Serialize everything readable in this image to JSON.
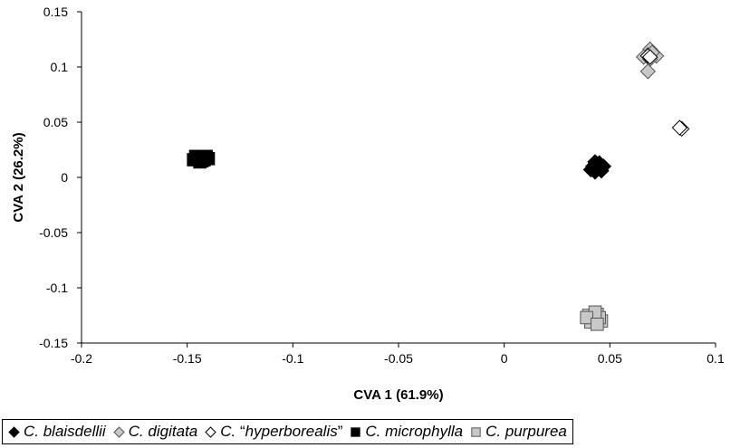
{
  "chart_data": {
    "type": "scatter",
    "title": "",
    "xlabel": "CVA 1 (61.9%)",
    "ylabel": "CVA 2 (26.2%)",
    "xlim": [
      -0.2,
      0.1
    ],
    "ylim": [
      -0.15,
      0.15
    ],
    "x_ticks": [
      -0.2,
      -0.15,
      -0.1,
      -0.05,
      0,
      0.05,
      0.1
    ],
    "x_tick_labels": [
      "-0.2",
      "-0.15",
      "-0.1",
      "-0.05",
      "0",
      "0.05",
      "0.1"
    ],
    "y_ticks": [
      -0.15,
      -0.1,
      -0.05,
      0,
      0.05,
      0.1,
      0.15
    ],
    "y_tick_labels": [
      "-0.15",
      "-0.1",
      "-0.05",
      "0",
      "0.05",
      "0.1",
      "0.15"
    ],
    "grid": false,
    "legend_position": "bottom",
    "series": [
      {
        "name": "C. blaisdellii",
        "marker": "diamond-filled",
        "color": "#000000",
        "points": [
          [
            0.043,
            0.014
          ],
          [
            0.045,
            0.008
          ],
          [
            0.042,
            0.01
          ],
          [
            0.046,
            0.006
          ],
          [
            0.044,
            0.012
          ],
          [
            0.041,
            0.007
          ],
          [
            0.047,
            0.01
          ],
          [
            0.043,
            0.005
          ],
          [
            0.045,
            0.013
          ],
          [
            0.044,
            0.009
          ]
        ]
      },
      {
        "name": "C. digitata",
        "marker": "diamond-gray",
        "color": "#c8c8c8",
        "points": [
          [
            0.069,
            0.116
          ],
          [
            0.068,
            0.111
          ],
          [
            0.072,
            0.11
          ],
          [
            0.066,
            0.109
          ],
          [
            0.07,
            0.113
          ],
          [
            0.069,
            0.107
          ],
          [
            0.068,
            0.096
          ]
        ]
      },
      {
        "name": "C. “hyperborealis”",
        "legend_prefix": "C. “",
        "legend_italic": "hyperborealis",
        "legend_suffix": "”",
        "marker": "diamond-open",
        "color": "#ffffff",
        "points": [
          [
            0.084,
            0.044
          ],
          [
            0.083,
            0.045
          ],
          [
            0.068,
            0.11
          ],
          [
            0.069,
            0.109
          ]
        ]
      },
      {
        "name": "C. microphylla",
        "marker": "square-filled",
        "color": "#000000",
        "points": [
          [
            -0.147,
            0.016
          ],
          [
            -0.145,
            0.018
          ],
          [
            -0.143,
            0.015
          ],
          [
            -0.14,
            0.017
          ],
          [
            -0.146,
            0.019
          ],
          [
            -0.142,
            0.016
          ],
          [
            -0.144,
            0.014
          ],
          [
            -0.141,
            0.019
          ]
        ]
      },
      {
        "name": "C. purpurea",
        "marker": "square-gray",
        "color": "#c8c8c8",
        "points": [
          [
            0.04,
            -0.125
          ],
          [
            0.042,
            -0.128
          ],
          [
            0.044,
            -0.124
          ],
          [
            0.046,
            -0.13
          ],
          [
            0.041,
            -0.131
          ],
          [
            0.045,
            -0.127
          ],
          [
            0.043,
            -0.122
          ],
          [
            0.039,
            -0.127
          ],
          [
            0.044,
            -0.133
          ]
        ]
      }
    ]
  }
}
